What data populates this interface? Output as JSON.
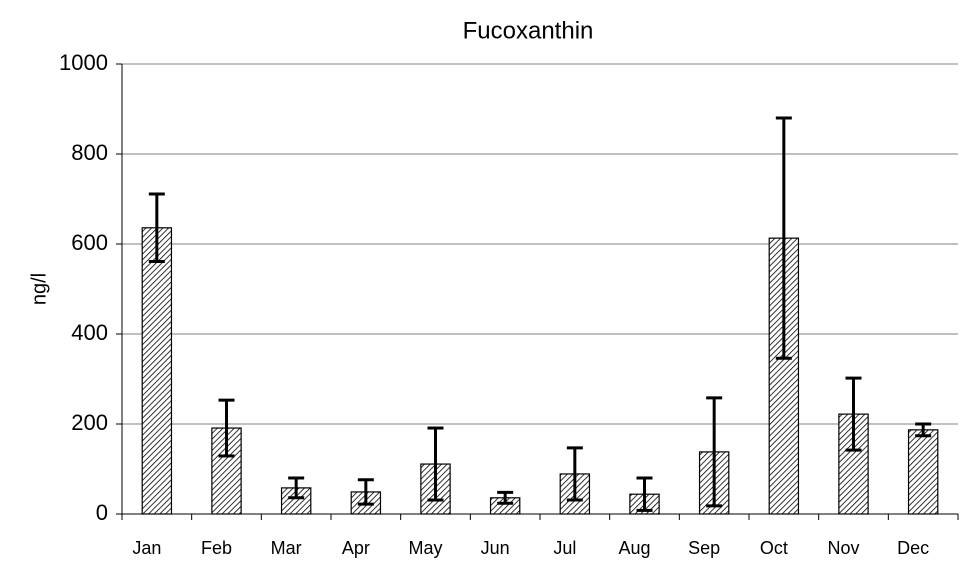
{
  "chart_data": {
    "type": "bar",
    "title": "Fucoxanthin",
    "y_label": "ng/l",
    "categories": [
      "Jan",
      "Feb",
      "Mar",
      "Apr",
      "May",
      "Jun",
      "Jul",
      "Aug",
      "Sep",
      "Oct",
      "Nov",
      "Dec"
    ],
    "values": [
      636,
      191,
      58,
      49,
      111,
      36,
      89,
      44,
      138,
      613,
      222,
      187
    ],
    "errors": [
      75,
      62,
      22,
      27,
      80,
      12,
      58,
      36,
      120,
      267,
      80,
      13
    ],
    "color": "#000000",
    "ylim": [
      0,
      1000
    ],
    "yticks": [
      0,
      200,
      400,
      600,
      800,
      1000
    ],
    "grid": true
  }
}
